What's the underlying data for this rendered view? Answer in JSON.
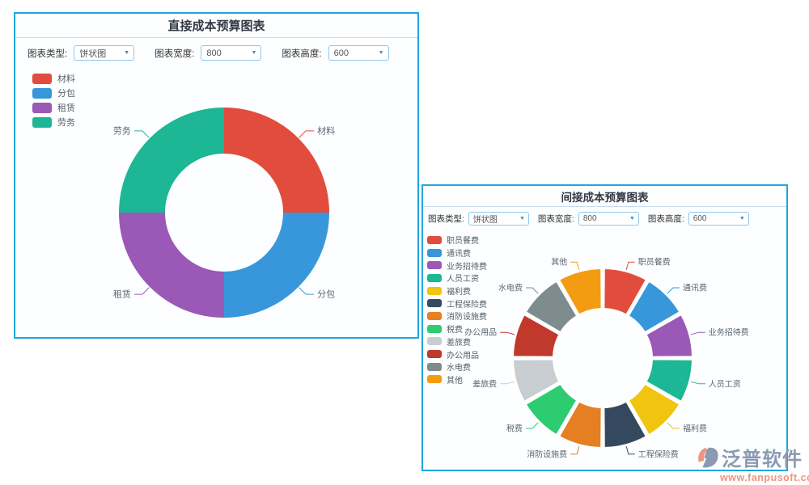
{
  "theme": {
    "panel_border": "#1fa6dc",
    "header_divider": "#c9dcee",
    "title_color": "#333a45",
    "select_border": "#8fc6ee",
    "caret_color": "#3090d8",
    "chart_label_color": "#5b6670"
  },
  "panels": [
    {
      "title": "直接成本预算图表",
      "controls": [
        {
          "label": "图表类型:",
          "value": "饼状图"
        },
        {
          "label": "图表宽度:",
          "value": "800"
        },
        {
          "label": "图表高度:",
          "value": "600"
        }
      ]
    },
    {
      "title": "间接成本预算图表",
      "controls": [
        {
          "label": "图表类型:",
          "value": "饼状图"
        },
        {
          "label": "图表宽度:",
          "value": "800"
        },
        {
          "label": "图表高度:",
          "value": "600"
        }
      ]
    }
  ],
  "chart_data": [
    {
      "type": "pie",
      "subtype": "donut",
      "title": "直接成本预算图表",
      "labels": [
        "材料",
        "分包",
        "租赁",
        "劳务"
      ],
      "values": [
        25,
        25,
        25,
        25
      ],
      "colors": [
        "#e24c3c",
        "#3897db",
        "#9a59b6",
        "#1db795"
      ],
      "legend_position": "top-left",
      "label_lines": true
    },
    {
      "type": "pie",
      "subtype": "donut-rounded",
      "title": "间接成本预算图表",
      "labels": [
        "职员餐费",
        "通讯费",
        "业务招待费",
        "人员工资",
        "福利费",
        "工程保险费",
        "消防设施费",
        "税费",
        "差旅费",
        "办公用品",
        "水电费",
        "其他"
      ],
      "values": [
        1,
        1,
        1,
        1,
        1,
        1,
        1,
        1,
        1,
        1,
        1,
        1
      ],
      "colors": [
        "#e24c3c",
        "#3897db",
        "#9a59b6",
        "#1db795",
        "#f1c40f",
        "#34495e",
        "#e67e22",
        "#2ecc71",
        "#c7cdd1",
        "#c0392b",
        "#7f8c8d",
        "#f39c12"
      ],
      "legend_position": "top-left",
      "label_lines": true
    }
  ],
  "watermark": {
    "brand": "泛普软件",
    "url": "www.fanpusoft.com"
  }
}
